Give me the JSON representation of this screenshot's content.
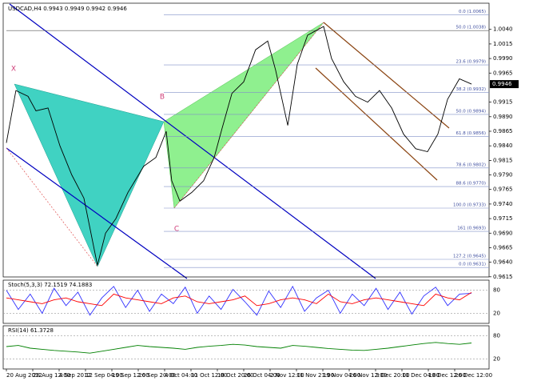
{
  "chart_data": [
    {
      "type": "line",
      "title": "USDCAD,H4 0.9943 0.9949 0.9942 0.9946",
      "x": [
        0,
        0.36,
        0.82,
        1.12,
        1.58,
        2.03,
        2.48,
        2.94,
        3.45,
        3.76,
        4.15,
        4.61,
        5.21,
        5.67,
        6.06,
        6.27,
        6.58,
        7.03,
        7.48,
        7.88,
        8.18,
        8.55,
        9,
        9.45,
        9.91,
        10.21,
        10.67,
        11.03,
        11.42,
        12.03,
        12.33,
        12.79,
        13.24,
        13.7,
        14.15,
        14.61,
        15.06,
        15.52,
        15.97,
        16.36,
        16.73,
        17.18,
        17.64
      ],
      "values": [
        0.9845,
        0.9935,
        0.9925,
        0.99,
        0.9905,
        0.984,
        0.979,
        0.975,
        0.9635,
        0.969,
        0.9715,
        0.976,
        0.9805,
        0.982,
        0.9865,
        0.978,
        0.9745,
        0.976,
        0.978,
        0.982,
        0.987,
        0.993,
        0.995,
        1.0005,
        1.002,
        0.997,
        0.9875,
        0.998,
        1.003,
        1.0045,
        0.999,
        0.995,
        0.9925,
        0.9915,
        0.9935,
        0.9905,
        0.986,
        0.9835,
        0.983,
        0.986,
        0.992,
        0.9955,
        0.9946
      ],
      "color": "#000000",
      "xlim": [
        0,
        18
      ],
      "xticks": [
        {
          "value": 0,
          "label": "20 Aug 2012"
        },
        {
          "value": 1,
          "label": "28 Aug 12:00"
        },
        {
          "value": 2,
          "label": "4 Sep 2012"
        },
        {
          "value": 3,
          "label": "12 Sep 04:00"
        },
        {
          "value": 4,
          "label": "19 Sep 12:00"
        },
        {
          "value": 5,
          "label": "26 Sep 20:00"
        },
        {
          "value": 6,
          "label": "4 Oct 04:00"
        },
        {
          "value": 7,
          "label": "11 Oct 12:00"
        },
        {
          "value": 8,
          "label": "18 Oct 20:00"
        },
        {
          "value": 9,
          "label": "26 Oct 04:00"
        },
        {
          "value": 10,
          "label": "2 Nov 12:00"
        },
        {
          "value": 11,
          "label": "11 Nov 21:00"
        },
        {
          "value": 12,
          "label": "19 Nov 04:00"
        },
        {
          "value": 13,
          "label": "26 Nov 12:00"
        },
        {
          "value": 14,
          "label": "3 Dec 20:00"
        },
        {
          "value": 15,
          "label": "11 Dec 04:00"
        },
        {
          "value": 16,
          "label": "18 Dec 12:00"
        },
        {
          "value": 17,
          "label": "26 Dec 12:00"
        }
      ],
      "ylim": [
        0.9612,
        1.0085
      ],
      "yticks": [
        {
          "value": 1.004,
          "label": "1.0040"
        },
        {
          "value": 1.0015,
          "label": "1.0015"
        },
        {
          "value": 0.999,
          "label": "0.9990"
        },
        {
          "value": 0.9965,
          "label": "0.9965"
        },
        {
          "value": 0.9915,
          "label": "0.9915"
        },
        {
          "value": 0.989,
          "label": "0.9890"
        },
        {
          "value": 0.9865,
          "label": "0.9865"
        },
        {
          "value": 0.984,
          "label": "0.9840"
        },
        {
          "value": 0.9815,
          "label": "0.9815"
        },
        {
          "value": 0.979,
          "label": "0.9790"
        },
        {
          "value": 0.9765,
          "label": "0.9765"
        },
        {
          "value": 0.974,
          "label": "0.9740"
        },
        {
          "value": 0.9715,
          "label": "0.9715"
        },
        {
          "value": 0.969,
          "label": "0.9690"
        },
        {
          "value": 0.9665,
          "label": "0.9665"
        },
        {
          "value": 0.964,
          "label": "0.9640"
        },
        {
          "value": 0.9615,
          "label": "0.9615"
        }
      ],
      "current_price": {
        "value": 0.9946,
        "label": "0.9946"
      },
      "fib_levels": [
        {
          "value": 1.0065,
          "label": "0.0 (1.0065)"
        },
        {
          "value": 1.0038,
          "label": "50.0 (1.0038)"
        },
        {
          "value": 0.9979,
          "label": "23.6 (0.9979)"
        },
        {
          "value": 0.9932,
          "label": "38.2 (0.9932)"
        },
        {
          "value": 0.9894,
          "label": "50.0 (0.9894)"
        },
        {
          "value": 0.9856,
          "label": "61.8 (0.9856)"
        },
        {
          "value": 0.9802,
          "label": "78.6 (0.9802)"
        },
        {
          "value": 0.977,
          "label": "88.6 (0.9770)"
        },
        {
          "value": 0.9733,
          "label": "100.0 (0.9733)"
        },
        {
          "value": 0.9693,
          "label": "161 (0.9693)"
        },
        {
          "value": 0.9645,
          "label": "127.2 (0.9645)"
        },
        {
          "value": 0.9631,
          "label": "0.0 (0.9631)"
        }
      ],
      "annotations": [
        "X",
        "B",
        "C"
      ]
    },
    {
      "type": "line",
      "title": "Stoch(5,3,3) 72.1519 74.1883",
      "series": [
        {
          "color": "#3030ff",
          "values": [
            80,
            30,
            70,
            20,
            85,
            40,
            75,
            15,
            60,
            90,
            35,
            80,
            25,
            70,
            45,
            88,
            20,
            65,
            30,
            82,
            50,
            15,
            78,
            35,
            90,
            25,
            60,
            80,
            20,
            70,
            40,
            85,
            30,
            75,
            18,
            65,
            88,
            40,
            70,
            72.1519
          ]
        },
        {
          "color": "#ff0000",
          "values": [
            60,
            55,
            50,
            45,
            55,
            60,
            50,
            45,
            40,
            70,
            60,
            55,
            50,
            45,
            60,
            65,
            50,
            45,
            50,
            55,
            65,
            40,
            45,
            55,
            60,
            55,
            45,
            70,
            50,
            45,
            55,
            60,
            55,
            50,
            45,
            40,
            70,
            60,
            55,
            74.1883
          ]
        }
      ],
      "ylim": [
        0,
        100
      ],
      "yticks": [
        80,
        20
      ]
    },
    {
      "type": "line",
      "title": "RSI(14) 61.3728",
      "series": [
        {
          "color": "#008000",
          "values": [
            52,
            55,
            48,
            45,
            42,
            40,
            38,
            35,
            40,
            45,
            50,
            55,
            52,
            50,
            48,
            45,
            50,
            53,
            55,
            58,
            56,
            52,
            50,
            48,
            55,
            53,
            50,
            47,
            45,
            43,
            42,
            45,
            48,
            52,
            56,
            60,
            63,
            60,
            58,
            61.3728
          ]
        }
      ],
      "ylim": [
        0,
        100
      ],
      "yticks": [
        80,
        20
      ]
    }
  ]
}
